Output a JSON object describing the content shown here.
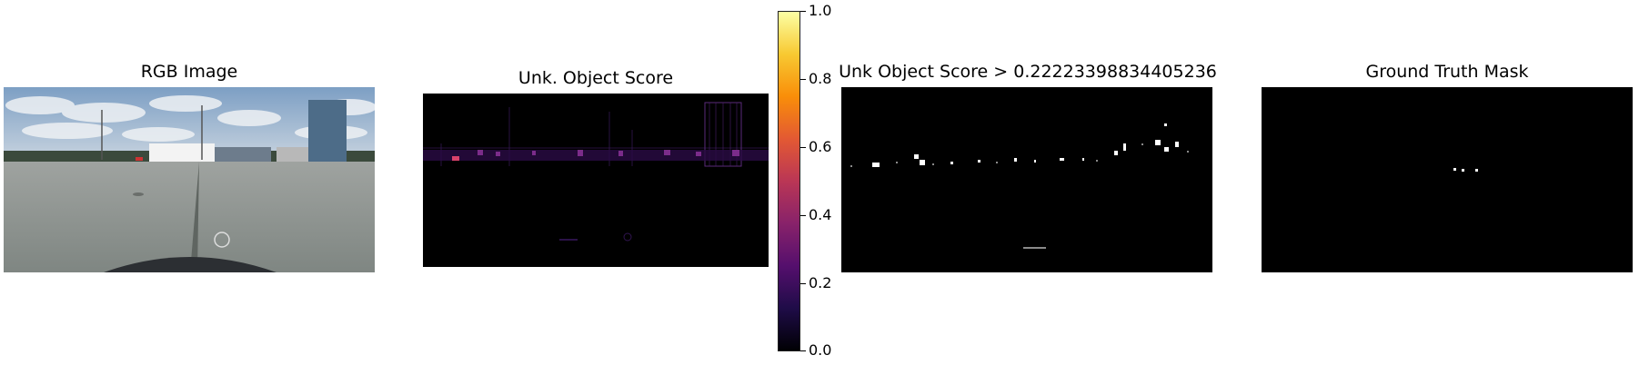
{
  "panels": {
    "rgb": {
      "title": "RGB Image"
    },
    "score": {
      "title": "Unk. Object Score"
    },
    "threshold": {
      "title": "Unk Object Score > 0.22223398834405236"
    },
    "gt": {
      "title": "Ground Truth Mask"
    }
  },
  "colorbar": {
    "colormap": "inferno",
    "ticks": [
      "1.0",
      "0.8",
      "0.6",
      "0.4",
      "0.2",
      "0.0"
    ]
  }
}
